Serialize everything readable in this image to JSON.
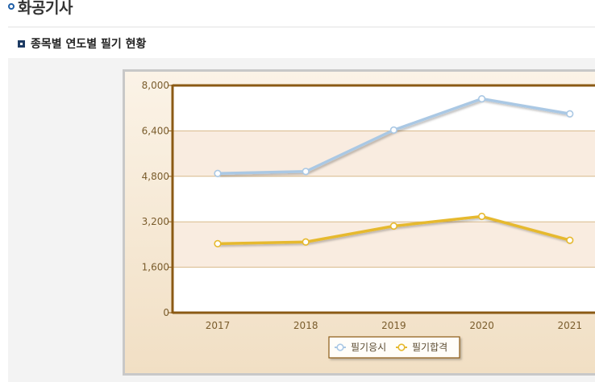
{
  "header": {
    "title": "화공기사",
    "section_title": "종목별 연도별 필기 현황"
  },
  "colors": {
    "series1": "#aac8e4",
    "series2": "#e6b92e",
    "axis": "#8b5a14",
    "band": "#f9ece0",
    "grid": "#d8b98a"
  },
  "chart_data": {
    "type": "line",
    "title": "",
    "xlabel": "",
    "ylabel": "",
    "categories": [
      "2017",
      "2018",
      "2019",
      "2020",
      "2021"
    ],
    "ylim": [
      0,
      8000
    ],
    "yticks": [
      0,
      1600,
      3200,
      4800,
      6400,
      8000
    ],
    "ytick_labels": [
      "0",
      "1,600",
      "3,200",
      "4,800",
      "6,400",
      "8,000"
    ],
    "grid": true,
    "legend_position": "bottom",
    "series": [
      {
        "name": "필기응시",
        "values": [
          4900,
          4970,
          6430,
          7530,
          7000
        ]
      },
      {
        "name": "필기합격",
        "values": [
          2430,
          2490,
          3050,
          3390,
          2550
        ]
      }
    ]
  }
}
